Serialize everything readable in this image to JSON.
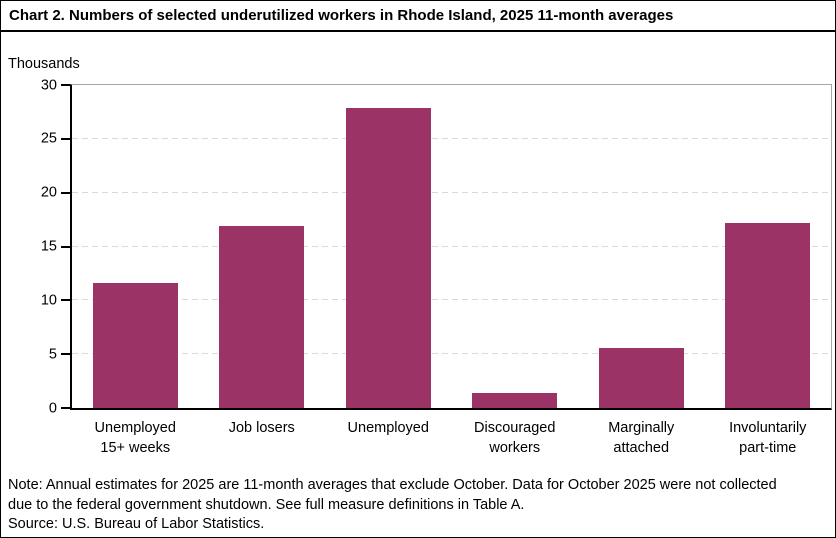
{
  "header": {
    "title": "Chart 2. Numbers of selected underutilized workers in Rhode Island, 2025 11-month averages"
  },
  "chart_data": {
    "type": "bar",
    "title": "Chart 2. Numbers of selected underutilized workers in Rhode Island, 2025 11-month averages",
    "ylabel": "Thousands",
    "xlabel": "",
    "categories": [
      "Unemployed 15+ weeks",
      "Job losers",
      "Unemployed",
      "Discouraged workers",
      "Marginally attached",
      "Involuntarily part-time"
    ],
    "category_lines": [
      [
        "Unemployed",
        "15+ weeks"
      ],
      [
        "Job losers"
      ],
      [
        "Unemployed"
      ],
      [
        "Discouraged",
        "workers"
      ],
      [
        "Marginally",
        "attached"
      ],
      [
        "Involuntarily",
        "part-time"
      ]
    ],
    "values": [
      11.6,
      16.9,
      27.9,
      1.4,
      5.6,
      17.2
    ],
    "ylim": [
      0,
      30
    ],
    "yticks": [
      0,
      5,
      10,
      15,
      20,
      25,
      30
    ],
    "bar_color": "#9c3366",
    "grid": "horizontal-dashed",
    "grid_color": "#d9d9d9",
    "plot_border_color": "#a6a6a6",
    "legend": "none"
  },
  "footer": {
    "note": "Note: Annual estimates for 2025 are 11-month averages that exclude October. Data for October 2025 were not collected due to the federal government shutdown. See full measure definitions in Table A.",
    "source": "Source: U.S. Bureau of Labor Statistics."
  }
}
